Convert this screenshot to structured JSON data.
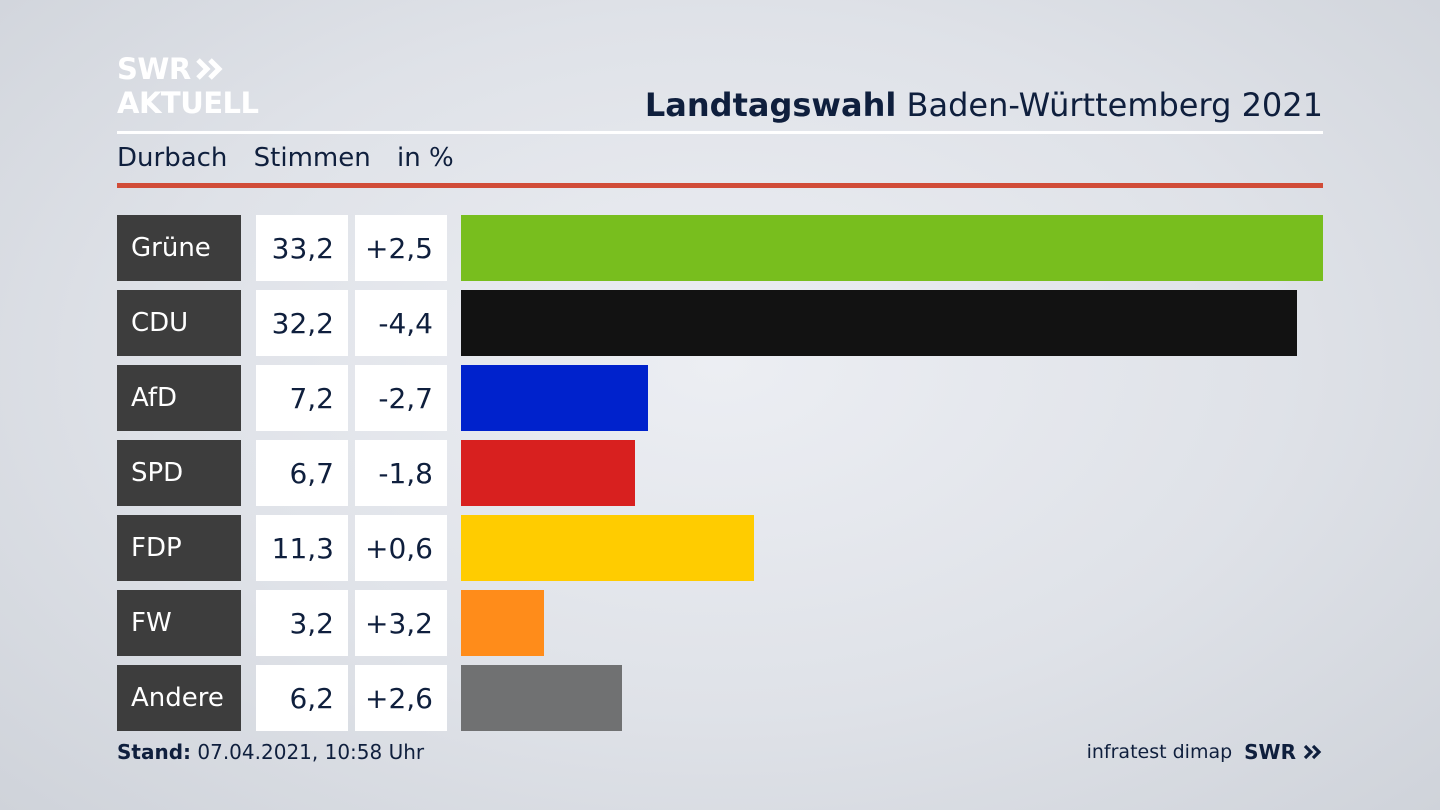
{
  "logo": {
    "line1": "SWR",
    "line2": "AKTUELL"
  },
  "header": {
    "title_bold": "Landtagswahl",
    "title_rest": "Baden-Württemberg 2021"
  },
  "subheader": {
    "location": "Durbach",
    "metric": "Stimmen",
    "unit": "in %"
  },
  "footer": {
    "stand_label": "Stand:",
    "stand_value": "07.04.2021, 10:58 Uhr",
    "source": "infratest dimap",
    "brand": "SWR"
  },
  "colors": {
    "accent_rule": "#d14c38",
    "party_label_bg": "#3d3d3d"
  },
  "chart_data": {
    "type": "bar",
    "orientation": "horizontal",
    "categories": [
      "Grüne",
      "CDU",
      "AfD",
      "SPD",
      "FDP",
      "FW",
      "Andere"
    ],
    "values": [
      33.2,
      32.2,
      7.2,
      6.7,
      11.3,
      3.2,
      6.2
    ],
    "value_labels": [
      "33,2",
      "32,2",
      "7,2",
      "6,7",
      "11,3",
      "3,2",
      "6,2"
    ],
    "change_labels": [
      "+2,5",
      "-4,4",
      "-2,7",
      "-1,8",
      "+0,6",
      "+3,2",
      "+2,6"
    ],
    "changes": [
      2.5,
      -4.4,
      -2.7,
      -1.8,
      0.6,
      3.2,
      2.6
    ],
    "colors": [
      "#78be1e",
      "#121212",
      "#0022cc",
      "#d8201f",
      "#ffcc00",
      "#ff8c1a",
      "#707172"
    ],
    "xlim": [
      0,
      33.2
    ]
  }
}
